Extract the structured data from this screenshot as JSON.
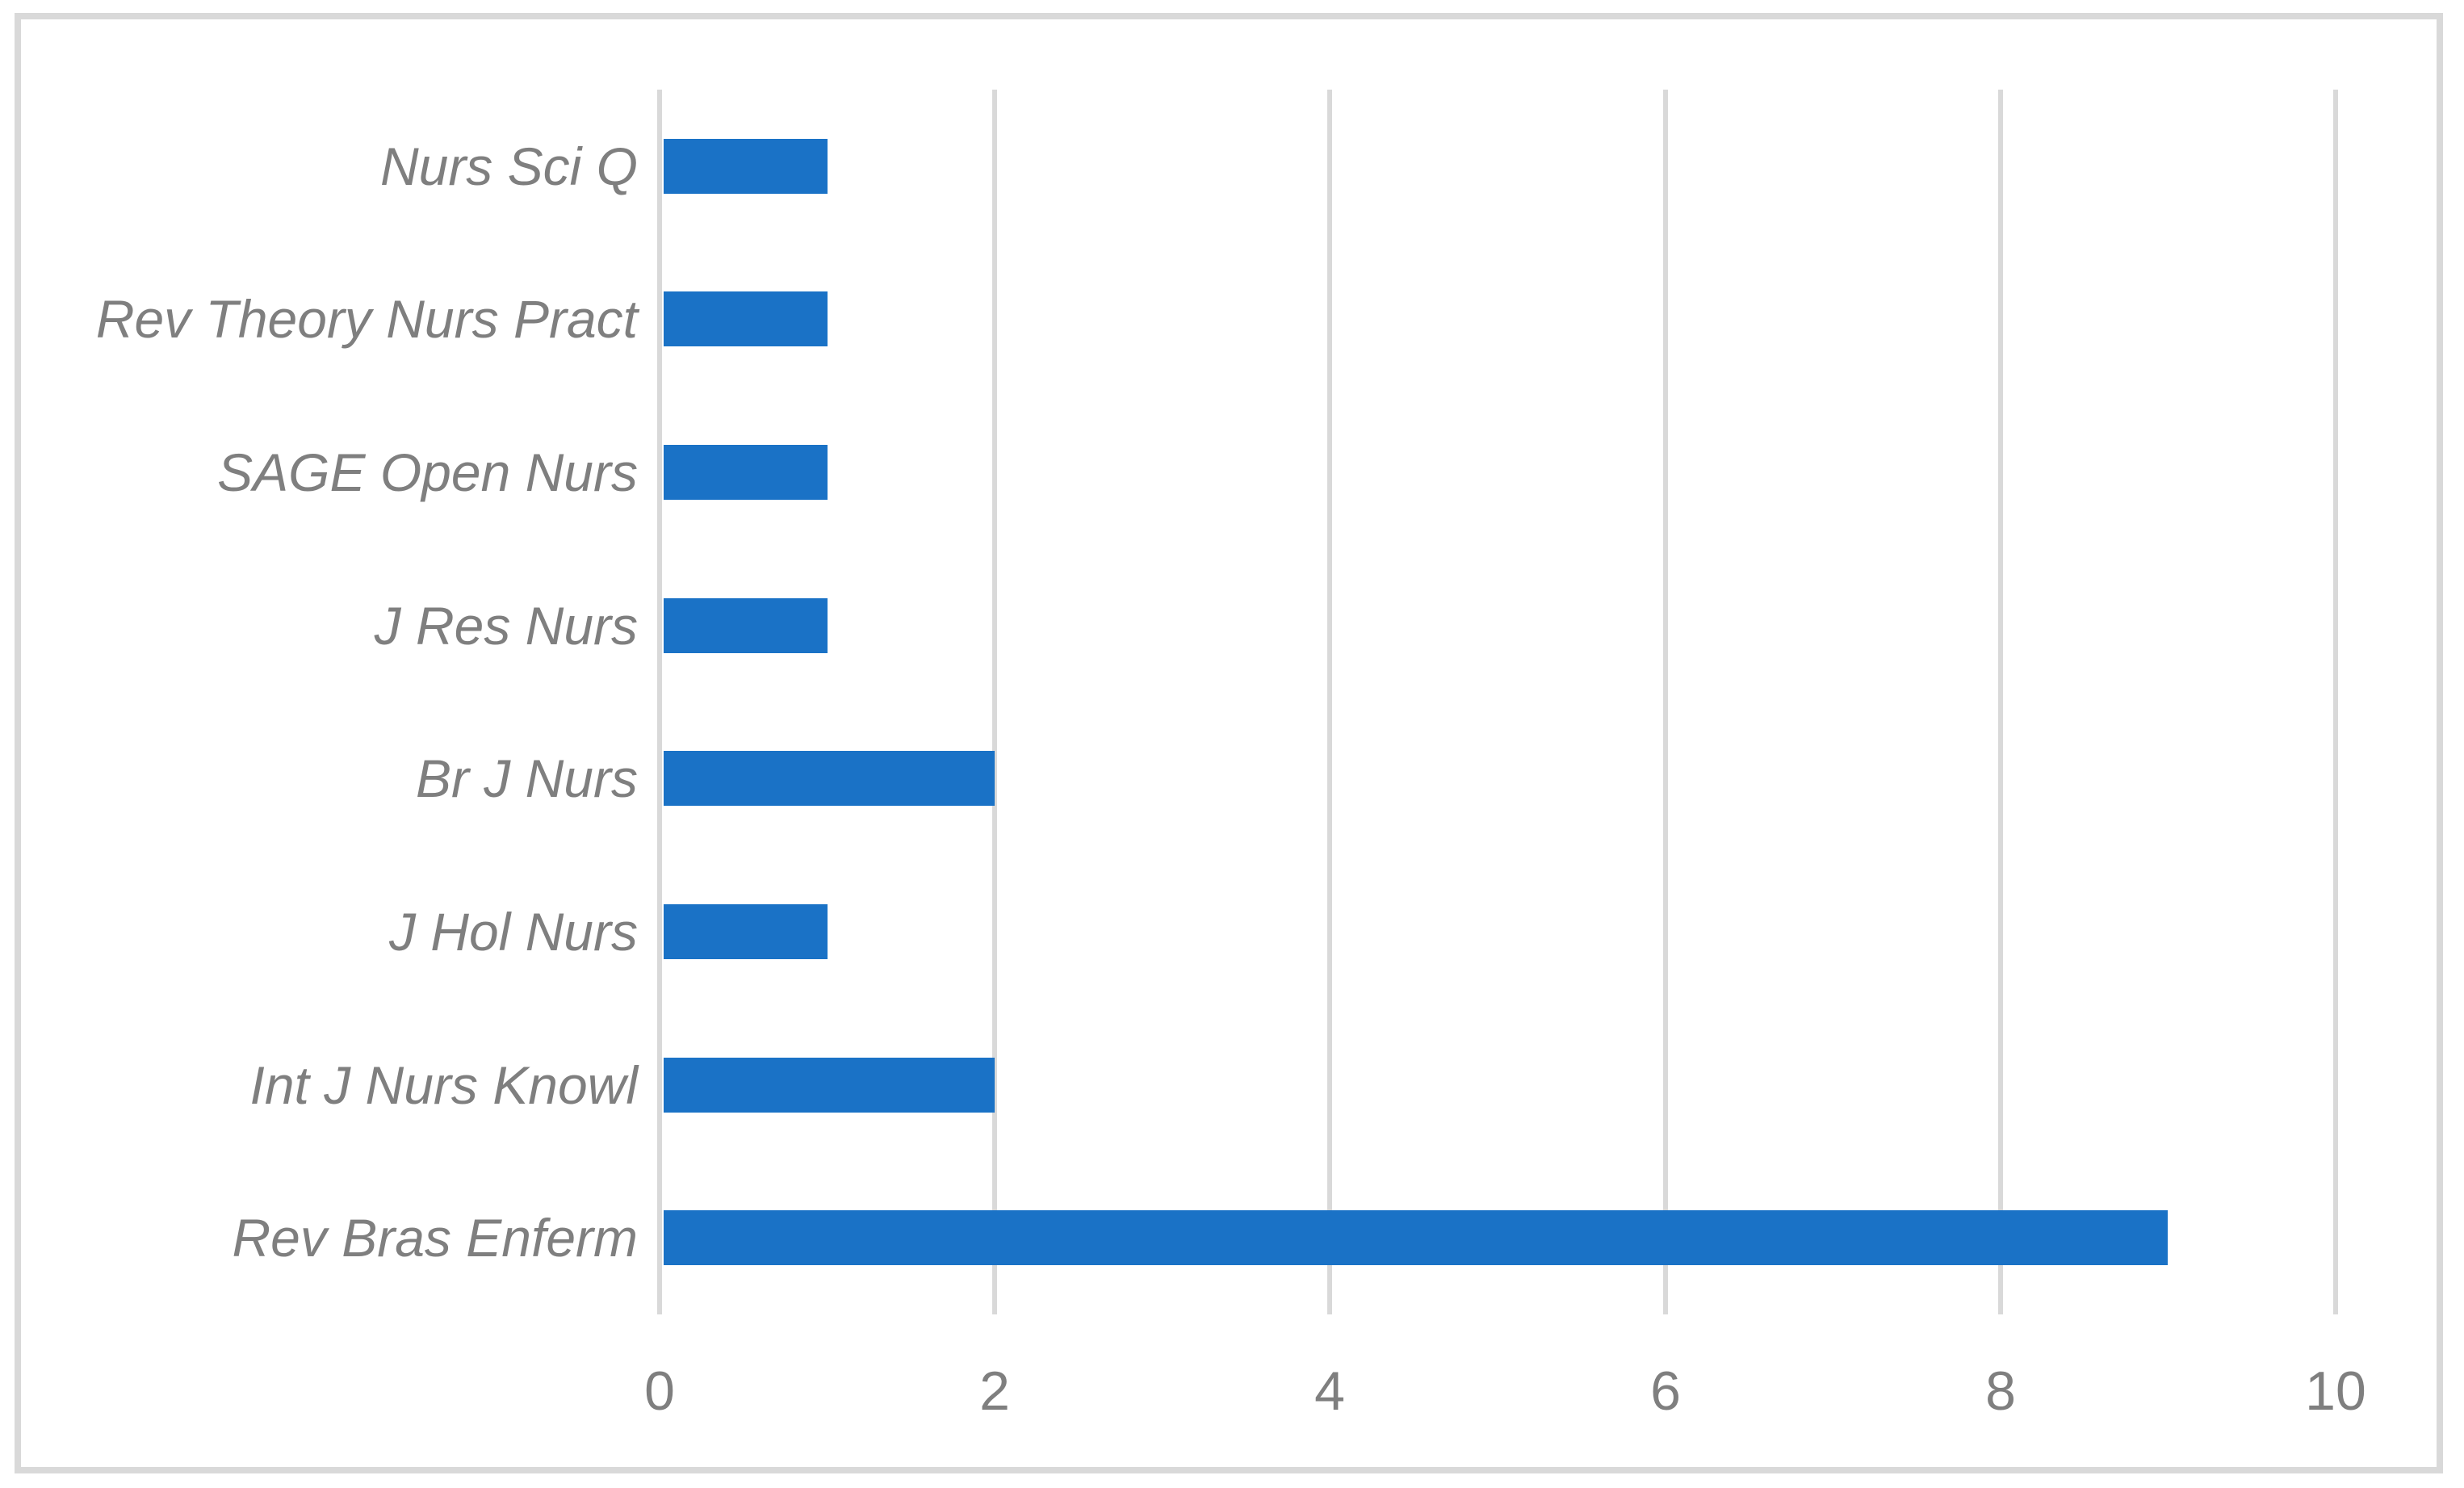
{
  "chart_data": {
    "type": "bar",
    "orientation": "horizontal",
    "title": "",
    "xlabel": "",
    "ylabel": "",
    "categories": [
      "Nurs Sci Q",
      "Rev Theory Nurs Pract",
      "SAGE Open Nurs",
      "J Res Nurs",
      "Br J Nurs",
      "J Hol Nurs",
      "Int J Nurs Knowl",
      "Rev Bras Enferm"
    ],
    "values": [
      1,
      1,
      1,
      1,
      2,
      1,
      2,
      9
    ],
    "xlim": [
      0,
      10
    ],
    "x_ticks": [
      0,
      2,
      4,
      6,
      8,
      10
    ],
    "grid": true,
    "legend": "none",
    "bar_color": "#1A72C6",
    "gridline_color": "#D9D9D9",
    "frame_color": "#D9D9D9",
    "label_color": "#7F7F7F"
  }
}
